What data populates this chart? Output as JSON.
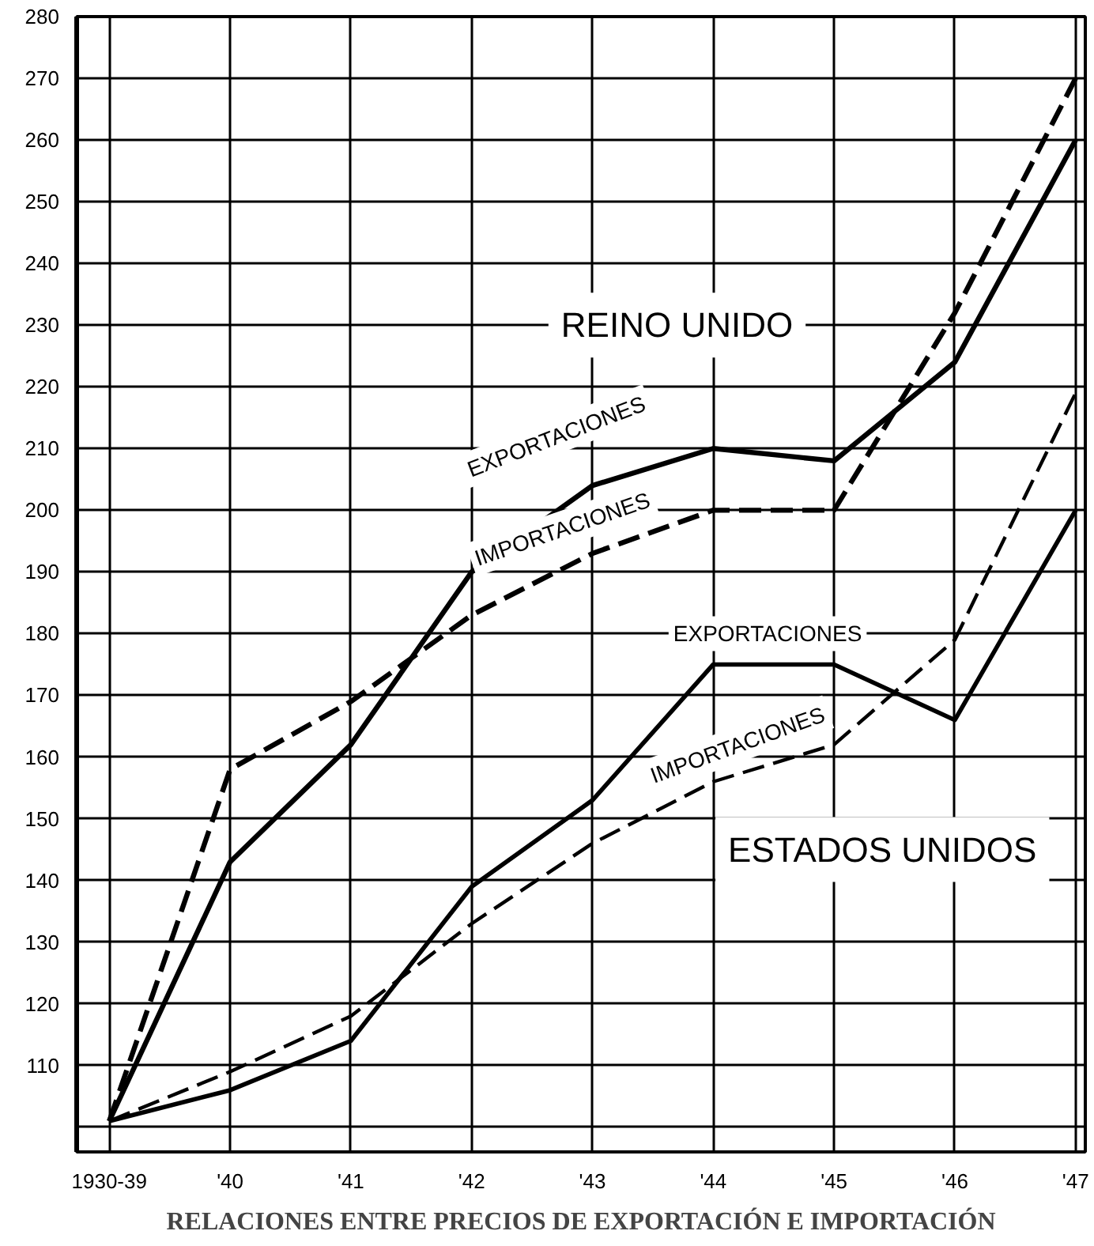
{
  "chart_data": {
    "type": "line",
    "title": "RELACIONES ENTRE PRECIOS DE EXPORTACIÓN E IMPORTACIÓN",
    "categories": [
      "1930-39",
      "'40",
      "'41",
      "'42",
      "'43",
      "'44",
      "'45",
      "'46",
      "'47"
    ],
    "series": [
      {
        "color": "#000000",
        "line_style": "solid",
        "values": [
          101,
          143,
          162,
          190,
          204,
          210,
          208,
          224,
          260
        ]
      },
      {
        "color": "#000000",
        "line_style": "dashed",
        "values": [
          101,
          158,
          169,
          183,
          193,
          200,
          200,
          232,
          270
        ]
      },
      {
        "color": "#000000",
        "line_style": "solid",
        "values": [
          101,
          106,
          114,
          139,
          153,
          175,
          175,
          166,
          200
        ]
      },
      {
        "color": "#000000",
        "line_style": "dashed",
        "values": [
          101,
          109,
          118,
          133,
          146,
          156,
          162,
          179,
          219
        ]
      }
    ],
    "ylim": [
      96,
      280
    ],
    "yticks": [
      {
        "value": 100,
        "label": null
      },
      110,
      120,
      130,
      140,
      150,
      160,
      170,
      180,
      190,
      200,
      210,
      220,
      230,
      240,
      250,
      260,
      270,
      280
    ],
    "grid": true,
    "annotations": [
      "REINO UNIDO",
      "EXPORTACIONES",
      "IMPORTACIONES",
      "EXPORTACIONES",
      "IMPORTACIONES",
      "ESTADOS UNIDOS"
    ]
  }
}
